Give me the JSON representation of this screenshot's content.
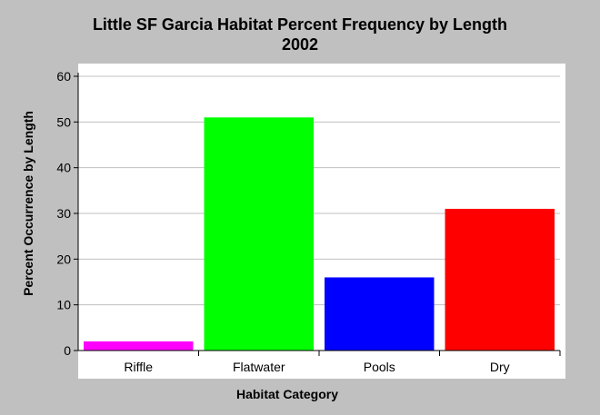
{
  "chart_data": {
    "type": "bar",
    "title": "Little SF Garcia Habitat Percent Frequency by Length",
    "subtitle": "2002",
    "xlabel": "Habitat Category",
    "ylabel": "Percent Occurrence by Length",
    "categories": [
      "Riffle",
      "Flatwater",
      "Pools",
      "Dry"
    ],
    "values": [
      2,
      51,
      16,
      31
    ],
    "colors": [
      "#ff00ff",
      "#00ff00",
      "#0000ff",
      "#ff0000"
    ],
    "ylim": [
      0,
      60
    ],
    "yticks": [
      0,
      10,
      20,
      30,
      40,
      50,
      60
    ],
    "grid": true,
    "legend": "none"
  }
}
